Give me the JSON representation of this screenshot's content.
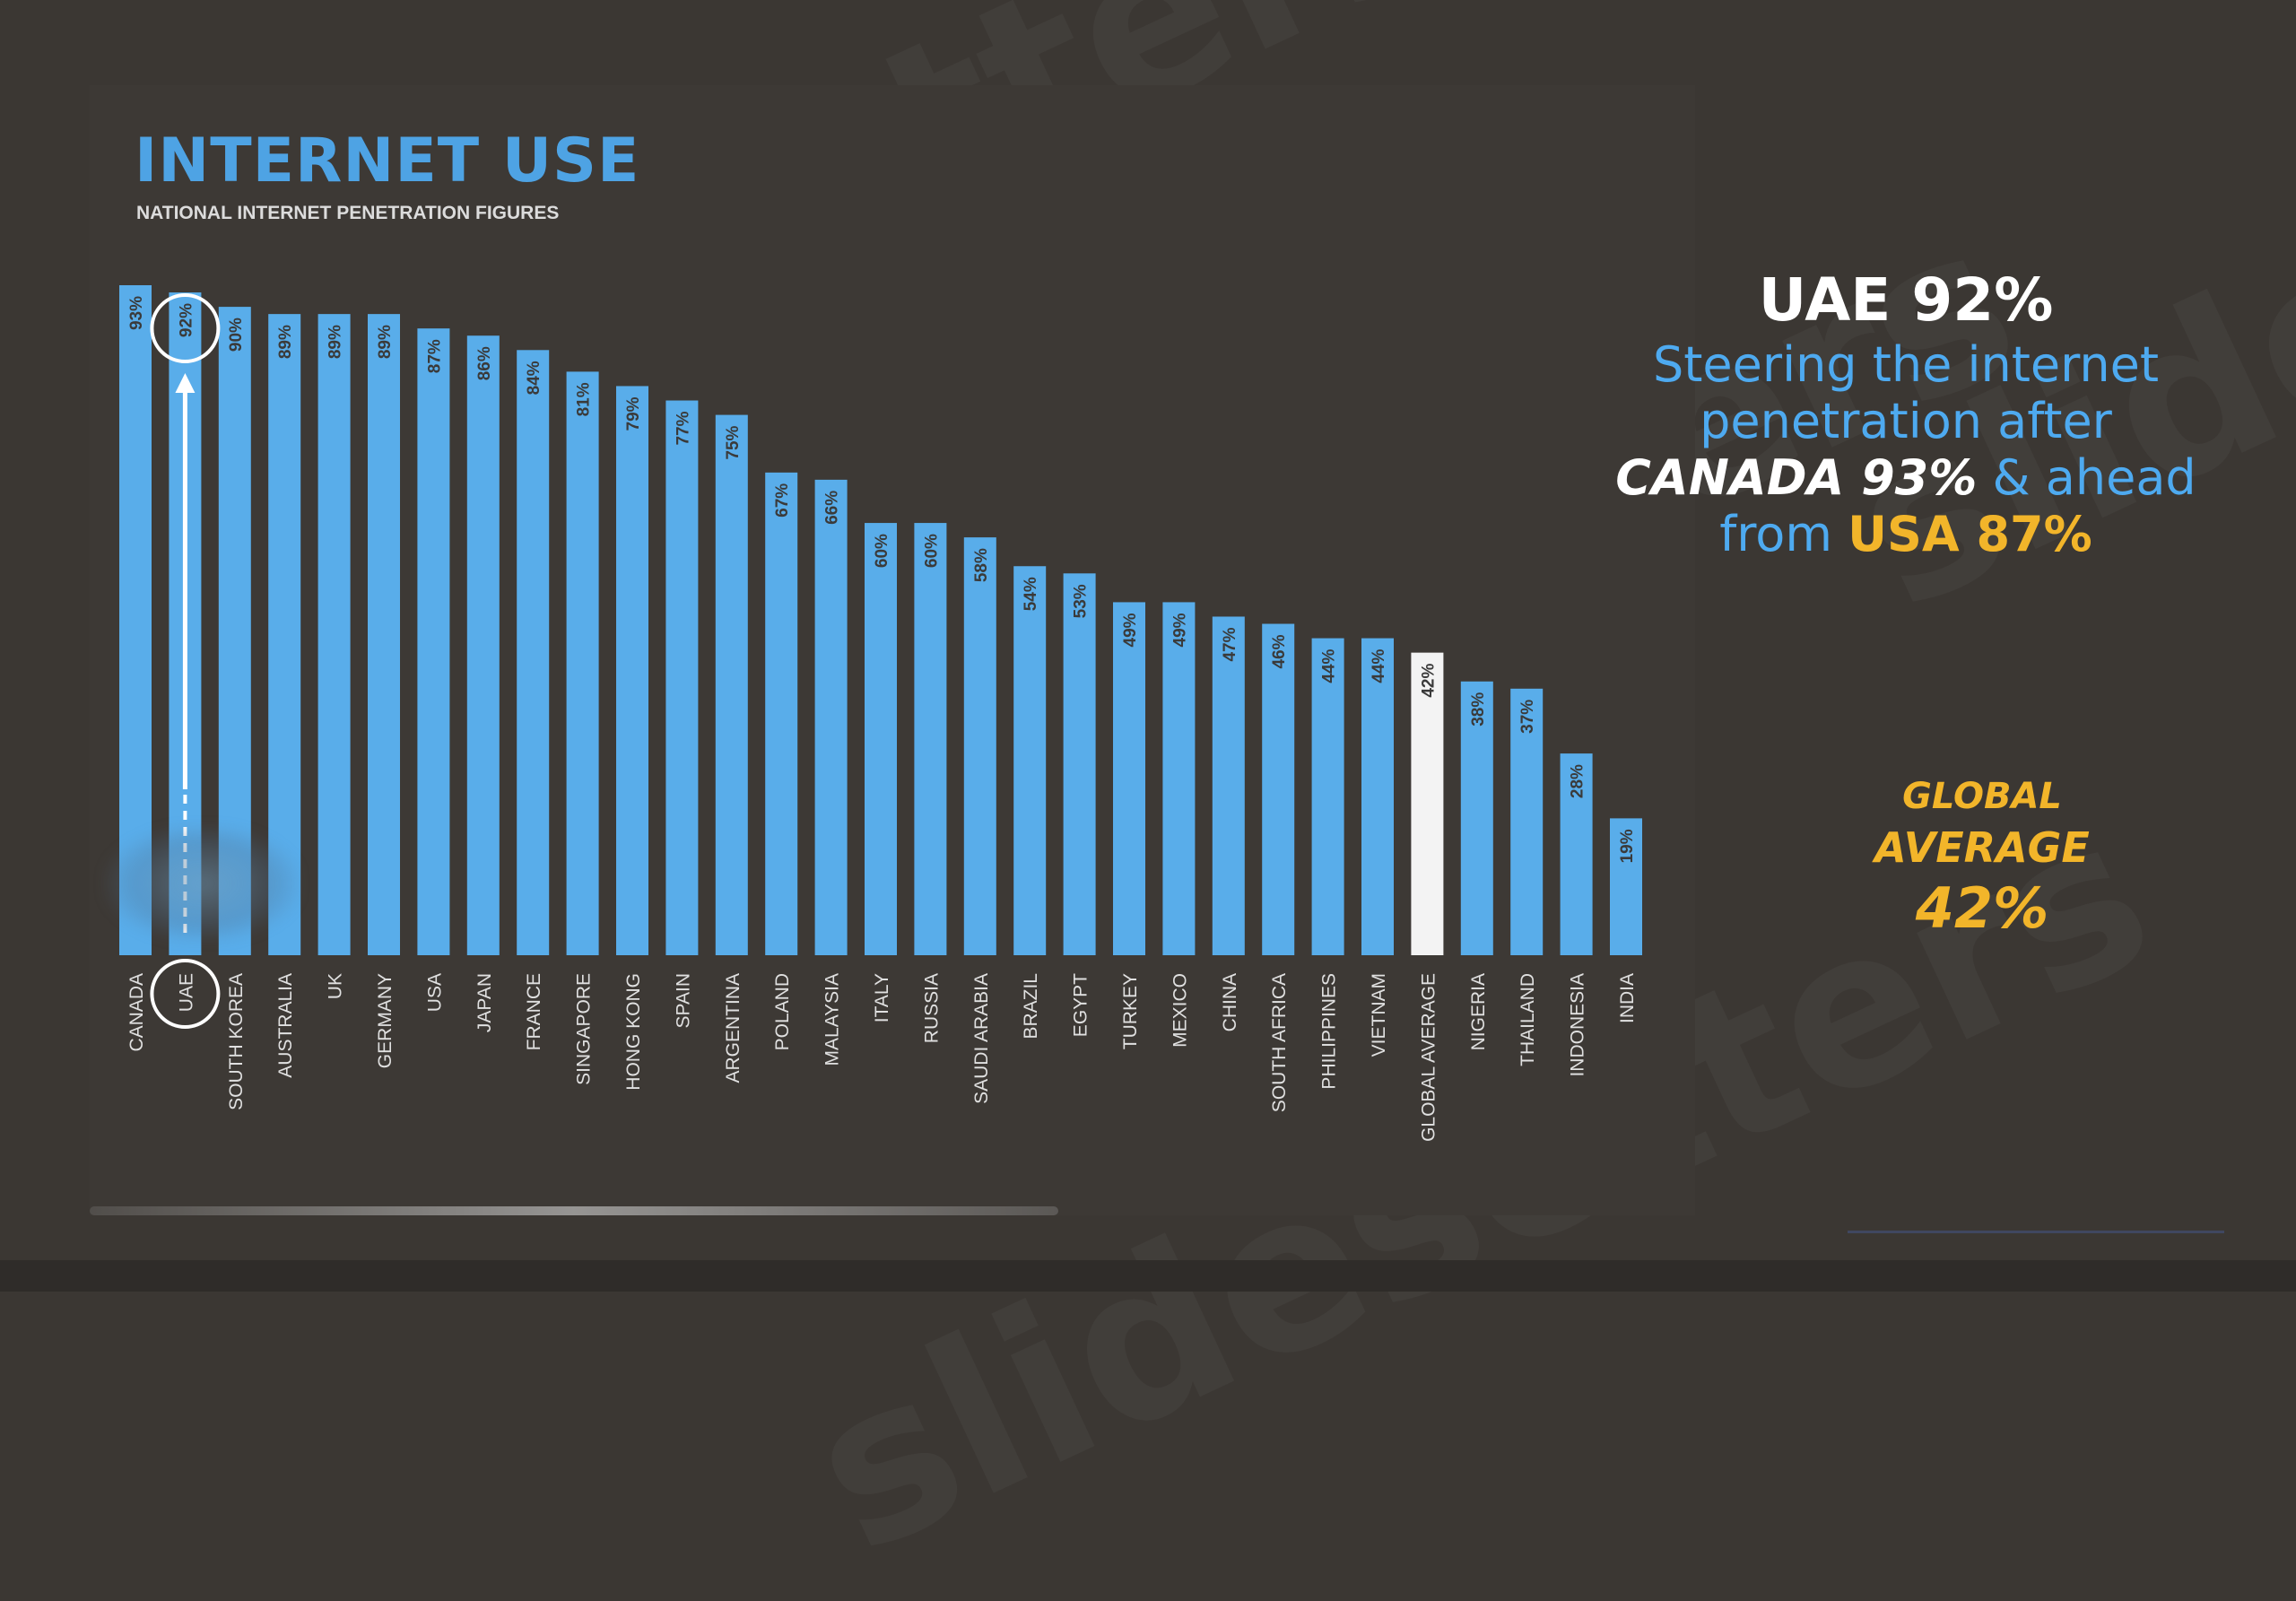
{
  "title": "INTERNET USE",
  "subtitle": "NATIONAL INTERNET PENETRATION FIGURES",
  "side": {
    "headline": "UAE 92%",
    "line1": "Steering the internet",
    "line2": "penetration after",
    "canada": "CANADA 93%",
    "ahead": " & ahead",
    "from": "from ",
    "usa": "USA 87%"
  },
  "global_note": {
    "line1": "GLOBAL",
    "line2": "AVERAGE",
    "line3": "42%"
  },
  "colors": {
    "bar": "#59adea",
    "highlight_bar": "#f3f3f3",
    "accent_gold": "#f2b52a",
    "title_blue": "#4ea3e4"
  },
  "chart_data": {
    "type": "bar",
    "title": "INTERNET USE",
    "subtitle": "NATIONAL INTERNET PENETRATION FIGURES",
    "categories": [
      "CANADA",
      "UAE",
      "SOUTH KOREA",
      "AUSTRALIA",
      "UK",
      "GERMANY",
      "USA",
      "JAPAN",
      "FRANCE",
      "SINGAPORE",
      "HONG KONG",
      "SPAIN",
      "ARGENTINA",
      "POLAND",
      "MALAYSIA",
      "ITALY",
      "RUSSIA",
      "SAUDI ARABIA",
      "BRAZIL",
      "EGYPT",
      "TURKEY",
      "MEXICO",
      "CHINA",
      "SOUTH AFRICA",
      "PHILIPPINES",
      "VIETNAM",
      "GLOBAL AVERAGE",
      "NIGERIA",
      "THAILAND",
      "INDONESIA",
      "INDIA"
    ],
    "values": [
      93,
      92,
      90,
      89,
      89,
      89,
      87,
      86,
      84,
      81,
      79,
      77,
      75,
      67,
      66,
      60,
      60,
      58,
      54,
      53,
      49,
      49,
      47,
      46,
      44,
      44,
      42,
      38,
      37,
      28,
      19
    ],
    "labels": [
      "93%",
      "92%",
      "90%",
      "89%",
      "89%",
      "89%",
      "87%",
      "86%",
      "84%",
      "81%",
      "79%",
      "77%",
      "75%",
      "67%",
      "66%",
      "60%",
      "60%",
      "58%",
      "54%",
      "53%",
      "49%",
      "49%",
      "47%",
      "46%",
      "44%",
      "44%",
      "42%",
      "38%",
      "37%",
      "28%",
      "19%"
    ],
    "highlight_category": "GLOBAL AVERAGE",
    "circled_category": "UAE",
    "ylim": [
      0,
      93
    ],
    "grid": false,
    "legend": "none"
  }
}
